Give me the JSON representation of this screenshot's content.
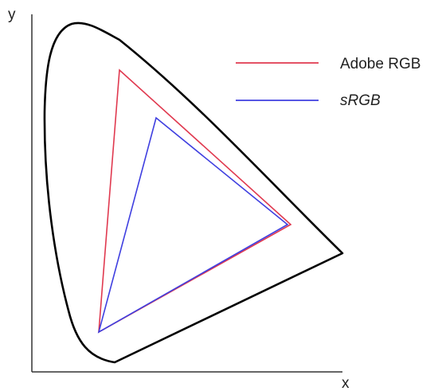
{
  "axes": {
    "x_label": "x",
    "y_label": "y"
  },
  "legend": {
    "entries": [
      {
        "label": "Adobe RGB",
        "color": "#e0394f",
        "italic": false
      },
      {
        "label": "sRGB",
        "color": "#3f3fe0",
        "italic": true
      }
    ]
  },
  "colors": {
    "axis": "#333333",
    "locus": "#000000",
    "adobe_rgb": "#e0394f",
    "srgb": "#3f3fe0"
  }
}
